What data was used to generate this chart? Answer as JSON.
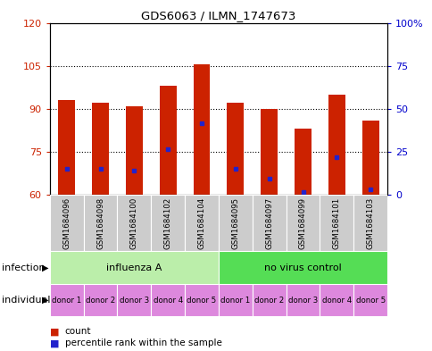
{
  "title": "GDS6063 / ILMN_1747673",
  "samples": [
    "GSM1684096",
    "GSM1684098",
    "GSM1684100",
    "GSM1684102",
    "GSM1684104",
    "GSM1684095",
    "GSM1684097",
    "GSM1684099",
    "GSM1684101",
    "GSM1684103"
  ],
  "count_values": [
    93,
    92,
    91,
    98,
    105.5,
    92,
    90,
    83,
    95,
    86
  ],
  "percentile_values": [
    69,
    69,
    68.5,
    76,
    85,
    69,
    65.5,
    61,
    73,
    62
  ],
  "ylim_left": [
    60,
    120
  ],
  "ylim_right": [
    0,
    100
  ],
  "yticks_left": [
    60,
    75,
    90,
    105,
    120
  ],
  "yticks_right": [
    0,
    25,
    50,
    75,
    100
  ],
  "bar_color": "#cc2200",
  "dot_color": "#2222cc",
  "bar_bottom": 60,
  "infection_groups": [
    {
      "label": "influenza A",
      "start": 0,
      "end": 5,
      "color": "#bbeeaa"
    },
    {
      "label": "no virus control",
      "start": 5,
      "end": 10,
      "color": "#55dd55"
    }
  ],
  "individual_labels": [
    "donor 1",
    "donor 2",
    "donor 3",
    "donor 4",
    "donor 5",
    "donor 1",
    "donor 2",
    "donor 3",
    "donor 4",
    "donor 5"
  ],
  "individual_color": "#dd88dd",
  "xticklabel_bg": "#cccccc",
  "grid_color": "#000000",
  "ylabel_left_color": "#cc2200",
  "ylabel_right_color": "#0000cc",
  "bar_width": 0.5
}
